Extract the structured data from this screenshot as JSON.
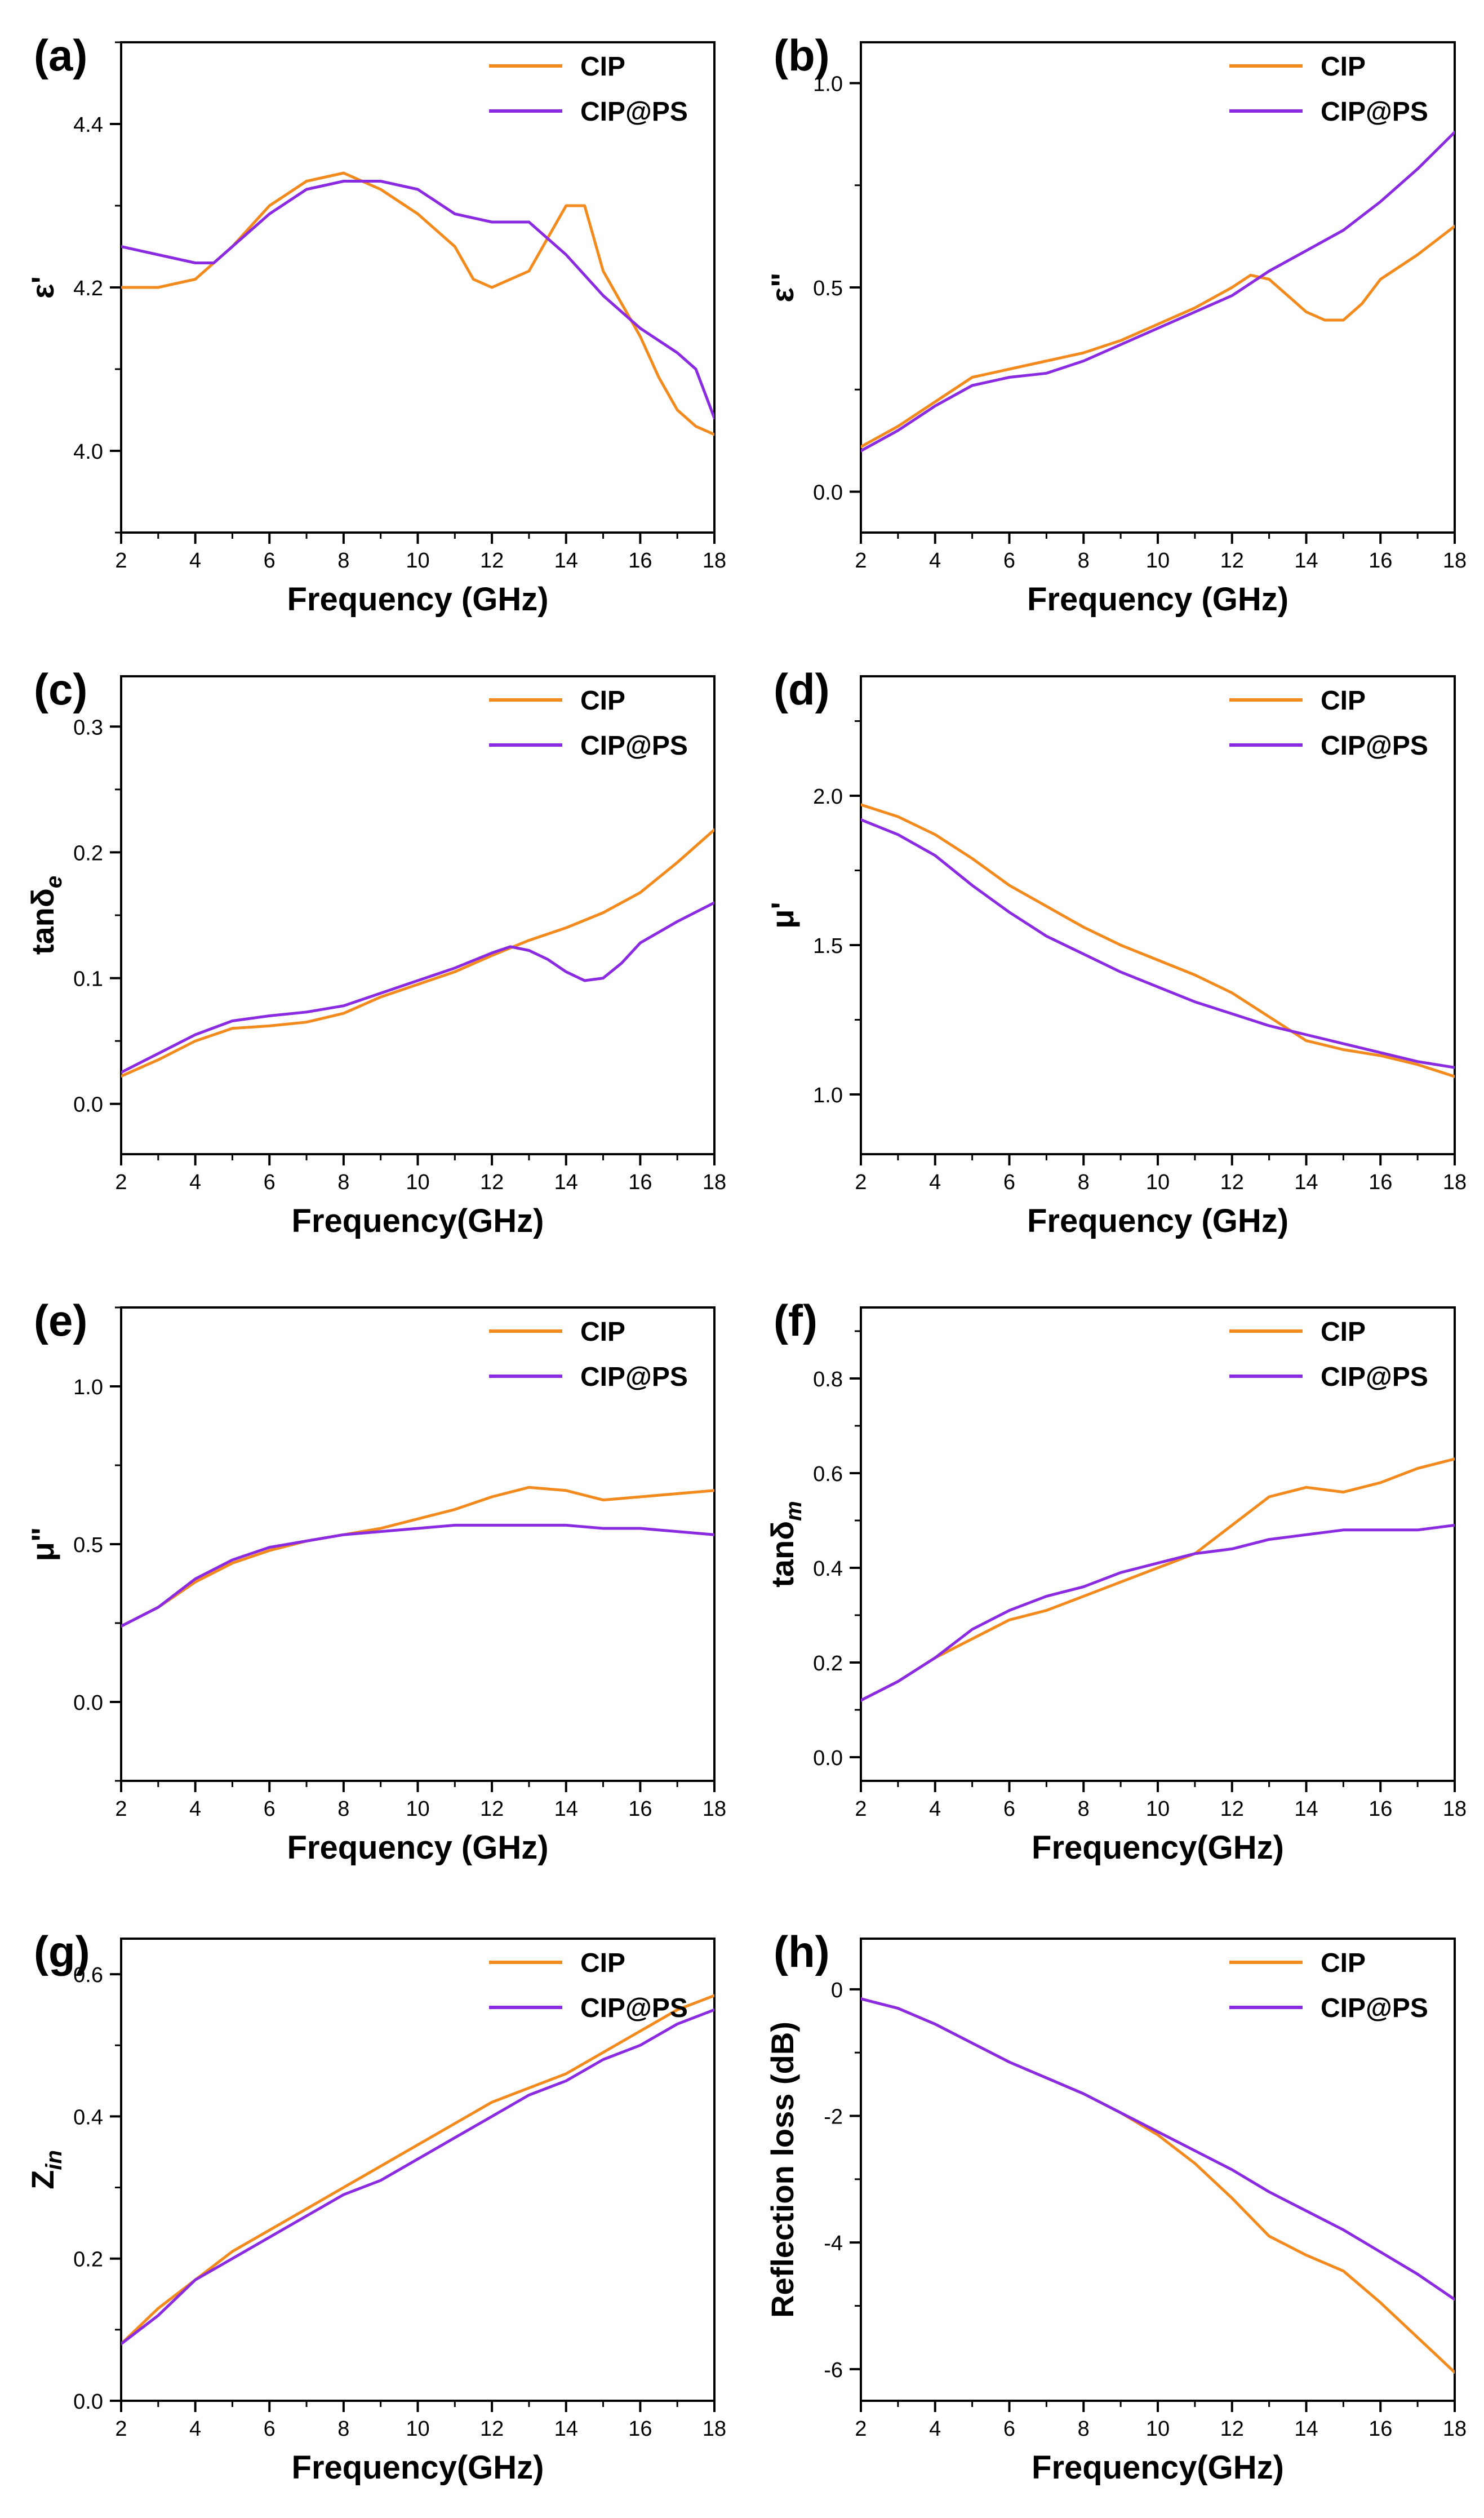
{
  "figure": {
    "background": "#ffffff",
    "axis_color": "#000000",
    "series_colors": {
      "CIP": "#F28A1D",
      "CIP@PS": "#8A2BE2"
    }
  },
  "chart_data": [
    {
      "panel": "(a)",
      "type": "line",
      "xlabel": "Frequency (GHz)",
      "ylabel": "ε'",
      "xlim": [
        2,
        18
      ],
      "ylim": [
        3.9,
        4.5
      ],
      "xticks": [
        2,
        4,
        6,
        8,
        10,
        12,
        14,
        16,
        18
      ],
      "yticks": [
        4.0,
        4.2,
        4.4
      ],
      "legend": "top-right",
      "series": [
        {
          "name": "CIP",
          "color": "#F28A1D",
          "x": [
            2,
            3,
            4,
            5,
            6,
            7,
            8,
            9,
            10,
            11,
            11.5,
            12,
            12.5,
            13,
            13.5,
            14,
            14.5,
            15,
            15.5,
            16,
            16.5,
            17,
            17.5,
            18
          ],
          "y": [
            4.2,
            4.2,
            4.21,
            4.25,
            4.3,
            4.33,
            4.34,
            4.32,
            4.29,
            4.25,
            4.21,
            4.2,
            4.21,
            4.22,
            4.26,
            4.3,
            4.3,
            4.22,
            4.18,
            4.14,
            4.09,
            4.05,
            4.03,
            4.02
          ]
        },
        {
          "name": "CIP@PS",
          "color": "#8A2BE2",
          "x": [
            2,
            3,
            4,
            4.5,
            5,
            6,
            7,
            8,
            9,
            10,
            11,
            12,
            13,
            14,
            15,
            16,
            17,
            17.5,
            18
          ],
          "y": [
            4.25,
            4.24,
            4.23,
            4.23,
            4.25,
            4.29,
            4.32,
            4.33,
            4.33,
            4.32,
            4.29,
            4.28,
            4.28,
            4.24,
            4.19,
            4.15,
            4.12,
            4.1,
            4.04
          ]
        }
      ]
    },
    {
      "panel": "(b)",
      "type": "line",
      "xlabel": "Frequency (GHz)",
      "ylabel": "ε\"",
      "xlim": [
        2,
        18
      ],
      "ylim": [
        -0.1,
        1.1
      ],
      "xticks": [
        2,
        4,
        6,
        8,
        10,
        12,
        14,
        16,
        18
      ],
      "yticks": [
        0.0,
        0.5,
        1.0
      ],
      "legend": "top-right",
      "series": [
        {
          "name": "CIP",
          "color": "#F28A1D",
          "x": [
            2,
            3,
            4,
            5,
            6,
            7,
            8,
            9,
            10,
            11,
            12,
            12.5,
            13,
            13.5,
            14,
            14.5,
            15,
            15.5,
            16,
            17,
            18
          ],
          "y": [
            0.11,
            0.16,
            0.22,
            0.28,
            0.3,
            0.32,
            0.34,
            0.37,
            0.41,
            0.45,
            0.5,
            0.53,
            0.52,
            0.48,
            0.44,
            0.42,
            0.42,
            0.46,
            0.52,
            0.58,
            0.65
          ]
        },
        {
          "name": "CIP@PS",
          "color": "#8A2BE2",
          "x": [
            2,
            3,
            4,
            5,
            6,
            7,
            8,
            9,
            10,
            11,
            12,
            13,
            14,
            15,
            16,
            17,
            18
          ],
          "y": [
            0.1,
            0.15,
            0.21,
            0.26,
            0.28,
            0.29,
            0.32,
            0.36,
            0.4,
            0.44,
            0.48,
            0.54,
            0.59,
            0.64,
            0.71,
            0.79,
            0.88
          ]
        }
      ]
    },
    {
      "panel": "(c)",
      "type": "line",
      "xlabel": "Frequency(GHz)",
      "ylabel": "tanδ",
      "ylabel_sub": "e",
      "xlim": [
        2,
        18
      ],
      "ylim": [
        -0.04,
        0.34
      ],
      "xticks": [
        2,
        4,
        6,
        8,
        10,
        12,
        14,
        16,
        18
      ],
      "yticks": [
        0.0,
        0.1,
        0.2,
        0.3
      ],
      "legend": "top-right",
      "series": [
        {
          "name": "CIP",
          "color": "#F28A1D",
          "x": [
            2,
            3,
            4,
            5,
            6,
            7,
            8,
            9,
            10,
            11,
            12,
            13,
            14,
            15,
            16,
            17,
            18
          ],
          "y": [
            0.022,
            0.035,
            0.05,
            0.06,
            0.062,
            0.065,
            0.072,
            0.085,
            0.095,
            0.105,
            0.118,
            0.13,
            0.14,
            0.152,
            0.168,
            0.192,
            0.218
          ]
        },
        {
          "name": "CIP@PS",
          "color": "#8A2BE2",
          "x": [
            2,
            3,
            4,
            5,
            6,
            7,
            8,
            9,
            10,
            11,
            12,
            12.5,
            13,
            13.5,
            14,
            14.5,
            15,
            15.5,
            16,
            17,
            18
          ],
          "y": [
            0.025,
            0.04,
            0.055,
            0.066,
            0.07,
            0.073,
            0.078,
            0.088,
            0.098,
            0.108,
            0.12,
            0.125,
            0.122,
            0.115,
            0.105,
            0.098,
            0.1,
            0.112,
            0.128,
            0.145,
            0.16
          ]
        }
      ]
    },
    {
      "panel": "(d)",
      "type": "line",
      "xlabel": "Frequency (GHz)",
      "ylabel": "μ'",
      "xlim": [
        2,
        18
      ],
      "ylim": [
        0.8,
        2.4
      ],
      "xticks": [
        2,
        4,
        6,
        8,
        10,
        12,
        14,
        16,
        18
      ],
      "yticks": [
        1.0,
        1.5,
        2.0
      ],
      "legend": "top-right",
      "series": [
        {
          "name": "CIP",
          "color": "#F28A1D",
          "x": [
            2,
            3,
            4,
            5,
            6,
            7,
            8,
            9,
            10,
            11,
            12,
            13,
            14,
            15,
            16,
            17,
            18
          ],
          "y": [
            1.97,
            1.93,
            1.87,
            1.79,
            1.7,
            1.63,
            1.56,
            1.5,
            1.45,
            1.4,
            1.34,
            1.26,
            1.18,
            1.15,
            1.13,
            1.1,
            1.06
          ]
        },
        {
          "name": "CIP@PS",
          "color": "#8A2BE2",
          "x": [
            2,
            3,
            4,
            5,
            6,
            7,
            8,
            9,
            10,
            11,
            12,
            13,
            14,
            15,
            16,
            17,
            18
          ],
          "y": [
            1.92,
            1.87,
            1.8,
            1.7,
            1.61,
            1.53,
            1.47,
            1.41,
            1.36,
            1.31,
            1.27,
            1.23,
            1.2,
            1.17,
            1.14,
            1.11,
            1.09
          ]
        }
      ]
    },
    {
      "panel": "(e)",
      "type": "line",
      "xlabel": "Frequency (GHz)",
      "ylabel": "μ\"",
      "xlim": [
        2,
        18
      ],
      "ylim": [
        -0.25,
        1.25
      ],
      "xticks": [
        2,
        4,
        6,
        8,
        10,
        12,
        14,
        16,
        18
      ],
      "yticks": [
        0.0,
        0.5,
        1.0
      ],
      "legend": "top-right",
      "series": [
        {
          "name": "CIP",
          "color": "#F28A1D",
          "x": [
            2,
            3,
            4,
            5,
            6,
            7,
            8,
            9,
            10,
            11,
            12,
            13,
            14,
            15,
            16,
            17,
            18
          ],
          "y": [
            0.24,
            0.3,
            0.38,
            0.44,
            0.48,
            0.51,
            0.53,
            0.55,
            0.58,
            0.61,
            0.65,
            0.68,
            0.67,
            0.64,
            0.65,
            0.66,
            0.67
          ]
        },
        {
          "name": "CIP@PS",
          "color": "#8A2BE2",
          "x": [
            2,
            3,
            4,
            5,
            6,
            7,
            8,
            9,
            10,
            11,
            12,
            13,
            14,
            15,
            16,
            17,
            18
          ],
          "y": [
            0.24,
            0.3,
            0.39,
            0.45,
            0.49,
            0.51,
            0.53,
            0.54,
            0.55,
            0.56,
            0.56,
            0.56,
            0.56,
            0.55,
            0.55,
            0.54,
            0.53
          ]
        }
      ]
    },
    {
      "panel": "(f)",
      "type": "line",
      "xlabel": "Frequency(GHz)",
      "ylabel": "tanδ",
      "ylabel_sub": "m",
      "xlim": [
        2,
        18
      ],
      "ylim": [
        -0.05,
        0.95
      ],
      "xticks": [
        2,
        4,
        6,
        8,
        10,
        12,
        14,
        16,
        18
      ],
      "yticks": [
        0.0,
        0.2,
        0.4,
        0.6,
        0.8
      ],
      "legend": "top-right",
      "series": [
        {
          "name": "CIP",
          "color": "#F28A1D",
          "x": [
            2,
            3,
            4,
            5,
            6,
            7,
            8,
            9,
            10,
            11,
            12,
            13,
            14,
            15,
            16,
            17,
            18
          ],
          "y": [
            0.12,
            0.16,
            0.21,
            0.25,
            0.29,
            0.31,
            0.34,
            0.37,
            0.4,
            0.43,
            0.49,
            0.55,
            0.57,
            0.56,
            0.58,
            0.61,
            0.63
          ]
        },
        {
          "name": "CIP@PS",
          "color": "#8A2BE2",
          "x": [
            2,
            3,
            4,
            5,
            6,
            7,
            8,
            9,
            10,
            11,
            12,
            13,
            14,
            15,
            16,
            17,
            18
          ],
          "y": [
            0.12,
            0.16,
            0.21,
            0.27,
            0.31,
            0.34,
            0.36,
            0.39,
            0.41,
            0.43,
            0.44,
            0.46,
            0.47,
            0.48,
            0.48,
            0.48,
            0.49
          ]
        }
      ]
    },
    {
      "panel": "(g)",
      "type": "line",
      "xlabel": "Frequency(GHz)",
      "ylabel": "Z",
      "ylabel_sub": "in",
      "xlim": [
        2,
        18
      ],
      "ylim": [
        0.0,
        0.65
      ],
      "xticks": [
        2,
        4,
        6,
        8,
        10,
        12,
        14,
        16,
        18
      ],
      "yticks": [
        0.0,
        0.2,
        0.4,
        0.6
      ],
      "legend": "top-right",
      "series": [
        {
          "name": "CIP",
          "color": "#F28A1D",
          "x": [
            2,
            3,
            4,
            5,
            6,
            7,
            8,
            9,
            10,
            11,
            12,
            13,
            14,
            15,
            16,
            17,
            18
          ],
          "y": [
            0.08,
            0.13,
            0.17,
            0.21,
            0.24,
            0.27,
            0.3,
            0.33,
            0.36,
            0.39,
            0.42,
            0.44,
            0.46,
            0.49,
            0.52,
            0.55,
            0.57
          ]
        },
        {
          "name": "CIP@PS",
          "color": "#8A2BE2",
          "x": [
            2,
            3,
            4,
            5,
            6,
            7,
            8,
            9,
            10,
            11,
            12,
            13,
            14,
            15,
            16,
            17,
            18
          ],
          "y": [
            0.08,
            0.12,
            0.17,
            0.2,
            0.23,
            0.26,
            0.29,
            0.31,
            0.34,
            0.37,
            0.4,
            0.43,
            0.45,
            0.48,
            0.5,
            0.53,
            0.55
          ]
        }
      ]
    },
    {
      "panel": "(h)",
      "type": "line",
      "xlabel": "Frequency(GHz)",
      "ylabel": "Reflection loss (dB)",
      "xlim": [
        2,
        18
      ],
      "ylim": [
        -6.5,
        0.8
      ],
      "xticks": [
        2,
        4,
        6,
        8,
        10,
        12,
        14,
        16,
        18
      ],
      "yticks": [
        0,
        -2,
        -4,
        -6
      ],
      "legend": "top-right",
      "series": [
        {
          "name": "CIP",
          "color": "#F28A1D",
          "x": [
            2,
            3,
            4,
            5,
            6,
            7,
            8,
            9,
            10,
            11,
            12,
            13,
            14,
            15,
            16,
            17,
            18
          ],
          "y": [
            -0.15,
            -0.3,
            -0.55,
            -0.85,
            -1.15,
            -1.4,
            -1.65,
            -1.95,
            -2.3,
            -2.75,
            -3.3,
            -3.9,
            -4.2,
            -4.45,
            -4.95,
            -5.5,
            -6.05
          ]
        },
        {
          "name": "CIP@PS",
          "color": "#8A2BE2",
          "x": [
            2,
            3,
            4,
            5,
            6,
            7,
            8,
            9,
            10,
            11,
            12,
            13,
            14,
            15,
            16,
            17,
            18
          ],
          "y": [
            -0.15,
            -0.3,
            -0.55,
            -0.85,
            -1.15,
            -1.4,
            -1.65,
            -1.95,
            -2.25,
            -2.55,
            -2.85,
            -3.2,
            -3.5,
            -3.8,
            -4.15,
            -4.5,
            -4.9
          ]
        }
      ]
    }
  ]
}
